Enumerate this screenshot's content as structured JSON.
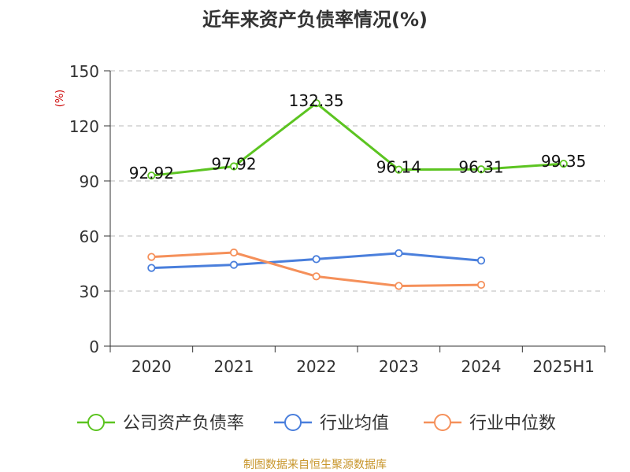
{
  "chart_data": {
    "type": "line",
    "title": "近年来资产负债率情况(%)",
    "ylabel": "(%)",
    "categories": [
      "2020",
      "2021",
      "2022",
      "2023",
      "2024",
      "2025H1"
    ],
    "ylim": [
      0,
      150
    ],
    "yticks": [
      0,
      30,
      60,
      90,
      120,
      150
    ],
    "grid": true,
    "legend_position": "bottom",
    "series": [
      {
        "name": "公司资产负债率",
        "color": "#5cc421",
        "values": [
          92.92,
          97.92,
          132.35,
          96.14,
          96.31,
          99.35
        ],
        "labels": [
          "92.92",
          "97.92",
          "132.35",
          "96.14",
          "96.31",
          "99.35"
        ]
      },
      {
        "name": "行业均值",
        "color": "#4a7fdc",
        "values": [
          42.6,
          44.3,
          47.4,
          50.6,
          46.6,
          null
        ]
      },
      {
        "name": "行业中位数",
        "color": "#f5905a",
        "values": [
          48.6,
          51.0,
          38.0,
          32.8,
          33.4,
          null
        ]
      }
    ],
    "source": "制图数据来自恒生聚源数据库"
  },
  "colors": {
    "title": "#333333",
    "axis_label": "#cc0000",
    "tick": "#333333",
    "grid": "#c8c8c8",
    "source": "#c8962c"
  }
}
